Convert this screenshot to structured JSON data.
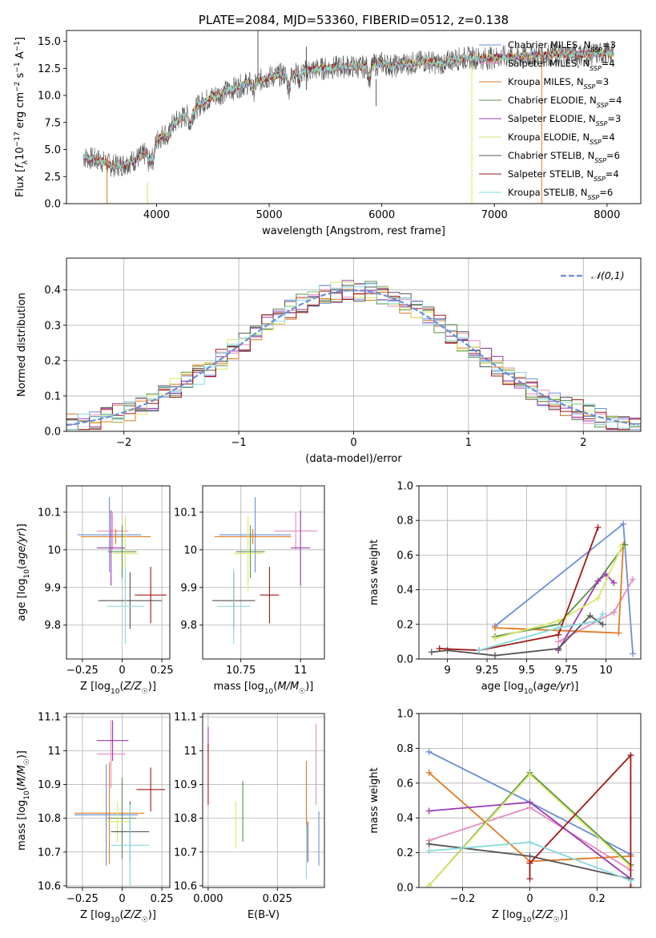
{
  "colors": {
    "chabrier_miles": "#6a8fd6",
    "salpeter_miles": "#e68bc0",
    "kroupa_miles": "#e07b24",
    "chabrier_elodie": "#5a8f4a",
    "salpeter_elodie": "#9a3cb0",
    "kroupa_elodie": "#d7e86a",
    "chabrier_stelib": "#555555",
    "salpeter_stelib": "#a01818",
    "kroupa_stelib": "#86d9de",
    "grid": "#b0b0b0"
  },
  "chart_data": [
    {
      "id": "spectrum",
      "type": "line",
      "title": "PLATE=2084, MJD=53360, FIBERID=0512, z=0.138",
      "xlabel": "wavelength [Angstrom, rest frame]",
      "ylabel": "Flux [f_λ 10^-17 erg cm^-2 s^-1 A^-1]",
      "xlim": [
        3200,
        8300
      ],
      "ylim": [
        0,
        16
      ],
      "xticks": [
        4000,
        5000,
        6000,
        7000,
        8000
      ],
      "yticks": [
        0.0,
        2.5,
        5.0,
        7.5,
        10.0,
        12.5,
        15.0
      ],
      "grid": false,
      "legend_position": "upper-right",
      "legend": [
        {
          "name": "Chabrier MILES, N_SSP=3",
          "color_key": "chabrier_miles"
        },
        {
          "name": "Salpeter MILES, N_SSP=4",
          "color_key": "salpeter_miles"
        },
        {
          "name": "Kroupa MILES, N_SSP=3",
          "color_key": "kroupa_miles"
        },
        {
          "name": "Chabrier ELODIE, N_SSP=4",
          "color_key": "chabrier_elodie"
        },
        {
          "name": "Salpeter ELODIE, N_SSP=3",
          "color_key": "salpeter_elodie"
        },
        {
          "name": "Kroupa ELODIE, N_SSP=4",
          "color_key": "kroupa_elodie"
        },
        {
          "name": "Chabrier STELIB, N_SSP=6",
          "color_key": "chabrier_stelib"
        },
        {
          "name": "Salpeter STELIB, N_SSP=4",
          "color_key": "salpeter_stelib"
        },
        {
          "name": "Kroupa STELIB, N_SSP=6",
          "color_key": "kroupa_stelib"
        }
      ],
      "continuum": [
        [
          3350,
          4.3
        ],
        [
          3500,
          4.0
        ],
        [
          3600,
          3.5
        ],
        [
          3700,
          3.6
        ],
        [
          3800,
          4.0
        ],
        [
          3900,
          4.6
        ],
        [
          4000,
          5.8
        ],
        [
          4100,
          6.8
        ],
        [
          4200,
          7.8
        ],
        [
          4300,
          8.3
        ],
        [
          4400,
          9.3
        ],
        [
          4500,
          9.9
        ],
        [
          4600,
          10.3
        ],
        [
          4700,
          10.7
        ],
        [
          4800,
          11.1
        ],
        [
          4900,
          11.3
        ],
        [
          5000,
          11.7
        ],
        [
          5100,
          11.9
        ],
        [
          5200,
          12.0
        ],
        [
          5300,
          12.2
        ],
        [
          5400,
          12.4
        ],
        [
          5500,
          12.5
        ],
        [
          5600,
          12.6
        ],
        [
          5700,
          12.7
        ],
        [
          5800,
          12.6
        ],
        [
          5900,
          12.7
        ],
        [
          6000,
          13.0
        ],
        [
          6100,
          12.7
        ],
        [
          6200,
          12.9
        ],
        [
          6300,
          13.0
        ],
        [
          6400,
          13.2
        ],
        [
          6500,
          12.9
        ],
        [
          6600,
          13.3
        ],
        [
          6700,
          13.4
        ],
        [
          6800,
          13.5
        ],
        [
          6900,
          13.4
        ],
        [
          7000,
          13.5
        ],
        [
          7200,
          13.6
        ],
        [
          7400,
          13.7
        ],
        [
          7600,
          13.8
        ],
        [
          7800,
          13.8
        ],
        [
          8000,
          13.9
        ],
        [
          8060,
          13.9
        ]
      ],
      "absorption_dips": [
        [
          3934,
          1.2
        ],
        [
          3969,
          1.3
        ],
        [
          4102,
          0.8
        ],
        [
          4300,
          1.0
        ],
        [
          4861,
          0.8
        ],
        [
          5175,
          1.3
        ],
        [
          5270,
          0.6
        ],
        [
          5890,
          1.0
        ],
        [
          6563,
          0.5
        ]
      ],
      "spikes": [
        {
          "x": 3560,
          "y0": 0.0,
          "y1": 4.5,
          "color_key": "kroupa_miles"
        },
        {
          "x": 3920,
          "y0": 0.0,
          "y1": 2.0,
          "color_key": "kroupa_elodie"
        },
        {
          "x": 4900,
          "y0": 12.0,
          "y1": 16.0,
          "color_key": "chabrier_stelib"
        },
        {
          "x": 5330,
          "y0": 10.5,
          "y1": 14.5,
          "color_key": "chabrier_stelib"
        },
        {
          "x": 5950,
          "y0": 9.0,
          "y1": 11.5,
          "color_key": "chabrier_stelib"
        },
        {
          "x": 6800,
          "y0": 0.0,
          "y1": 13.0,
          "color_key": "kroupa_elodie"
        },
        {
          "x": 7420,
          "y0": 0.0,
          "y1": 14.0,
          "color_key": "kroupa_miles"
        }
      ]
    },
    {
      "id": "residuals",
      "type": "histogram",
      "xlabel": "(data-model)/error",
      "ylabel": "Normed distribution",
      "xlim": [
        -2.5,
        2.5
      ],
      "ylim": [
        0,
        0.49
      ],
      "xticks": [
        -2,
        -1,
        0,
        1,
        2
      ],
      "yticks": [
        0.0,
        0.1,
        0.2,
        0.3,
        0.4
      ],
      "grid": true,
      "bin_width": 0.1,
      "legend_position": "upper-right",
      "gaussian": {
        "name": "𝒩(0,1)",
        "mean": 0,
        "sigma": 1,
        "color_key": "chabrier_miles"
      }
    },
    {
      "id": "age-vs-z",
      "type": "errorbar",
      "xlabel": "Z [log10(Z/Z☉)]",
      "ylabel": "age [log10(age/yr)]",
      "xlim": [
        -0.35,
        0.3
      ],
      "ylim": [
        9.71,
        10.17
      ],
      "xticks": [
        -0.25,
        0.0,
        0.25
      ],
      "yticks": [
        9.8,
        9.9,
        10.0,
        10.1
      ],
      "grid": true,
      "points": [
        {
          "x": -0.08,
          "xerr": 0.2,
          "y": 10.04,
          "yerr": 0.1,
          "color_key": "chabrier_miles"
        },
        {
          "x": -0.06,
          "xerr": 0.1,
          "y": 10.05,
          "yerr": 0.05,
          "color_key": "salpeter_miles"
        },
        {
          "x": -0.04,
          "xerr": 0.22,
          "y": 10.035,
          "yerr": 0.02,
          "color_key": "kroupa_miles"
        },
        {
          "x": 0.0,
          "xerr": 0.09,
          "y": 9.995,
          "yerr": 0.07,
          "color_key": "chabrier_elodie"
        },
        {
          "x": -0.07,
          "xerr": 0.09,
          "y": 10.005,
          "yerr": 0.1,
          "color_key": "salpeter_elodie"
        },
        {
          "x": 0.02,
          "xerr": 0.08,
          "y": 9.99,
          "yerr": 0.1,
          "color_key": "kroupa_elodie"
        },
        {
          "x": 0.05,
          "xerr": 0.2,
          "y": 9.865,
          "yerr": 0.075,
          "color_key": "chabrier_stelib"
        },
        {
          "x": 0.18,
          "xerr": 0.1,
          "y": 9.88,
          "yerr": 0.075,
          "color_key": "salpeter_stelib"
        },
        {
          "x": 0.02,
          "xerr": 0.12,
          "y": 9.85,
          "yerr": 0.1,
          "color_key": "kroupa_stelib"
        }
      ]
    },
    {
      "id": "age-vs-mass",
      "type": "errorbar",
      "xlabel": "mass [log10(M/M☉)]",
      "ylabel": "",
      "xlim": [
        10.59,
        11.1
      ],
      "ylim": [
        9.71,
        10.17
      ],
      "xticks": [
        10.75,
        11.0
      ],
      "yticks": [
        9.8,
        9.9,
        10.0,
        10.1
      ],
      "grid": true,
      "points": [
        {
          "x": 10.81,
          "xerr": 0.15,
          "y": 10.04,
          "yerr": 0.1,
          "color_key": "chabrier_miles"
        },
        {
          "x": 10.98,
          "xerr": 0.09,
          "y": 10.05,
          "yerr": 0.05,
          "color_key": "salpeter_miles"
        },
        {
          "x": 10.8,
          "xerr": 0.16,
          "y": 10.035,
          "yerr": 0.02,
          "color_key": "kroupa_miles"
        },
        {
          "x": 10.79,
          "xerr": 0.06,
          "y": 9.995,
          "yerr": 0.07,
          "color_key": "chabrier_elodie"
        },
        {
          "x": 11.0,
          "xerr": 0.04,
          "y": 10.005,
          "yerr": 0.1,
          "color_key": "salpeter_elodie"
        },
        {
          "x": 10.78,
          "xerr": 0.06,
          "y": 9.99,
          "yerr": 0.1,
          "color_key": "kroupa_elodie"
        },
        {
          "x": 10.72,
          "xerr": 0.09,
          "y": 9.865,
          "yerr": 0.075,
          "color_key": "chabrier_stelib"
        },
        {
          "x": 10.87,
          "xerr": 0.04,
          "y": 9.88,
          "yerr": 0.075,
          "color_key": "salpeter_stelib"
        },
        {
          "x": 10.72,
          "xerr": 0.07,
          "y": 9.85,
          "yerr": 0.1,
          "color_key": "kroupa_stelib"
        }
      ]
    },
    {
      "id": "mass-weight-vs-age",
      "type": "line",
      "xlabel": "age [log10(age/yr)]",
      "ylabel": "mass weight",
      "xlim": [
        8.82,
        10.22
      ],
      "ylim": [
        0,
        1.0
      ],
      "xticks": [
        9.0,
        9.25,
        9.5,
        9.75,
        10.0
      ],
      "yticks": [
        0.0,
        0.2,
        0.4,
        0.6,
        0.8,
        1.0
      ],
      "grid": true,
      "series": [
        {
          "color_key": "chabrier_miles",
          "x": [
            9.3,
            10.11,
            10.17
          ],
          "y": [
            0.19,
            0.78,
            0.03
          ]
        },
        {
          "color_key": "salpeter_miles",
          "x": [
            9.7,
            10.05,
            10.17
          ],
          "y": [
            0.1,
            0.27,
            0.46
          ]
        },
        {
          "color_key": "kroupa_miles",
          "x": [
            9.3,
            10.08,
            10.11
          ],
          "y": [
            0.18,
            0.15,
            0.66
          ]
        },
        {
          "color_key": "chabrier_elodie",
          "x": [
            9.3,
            9.7,
            9.95,
            10.12
          ],
          "y": [
            0.13,
            0.2,
            0.45,
            0.66
          ]
        },
        {
          "color_key": "salpeter_elodie",
          "x": [
            9.7,
            9.95,
            10.0,
            10.05
          ],
          "y": [
            0.05,
            0.45,
            0.49,
            0.44
          ]
        },
        {
          "color_key": "kroupa_elodie",
          "x": [
            9.3,
            9.7,
            9.95,
            10.1
          ],
          "y": [
            0.12,
            0.22,
            0.35,
            0.65
          ]
        },
        {
          "color_key": "chabrier_stelib",
          "x": [
            8.9,
            9.0,
            9.3,
            9.7,
            9.9,
            9.98
          ],
          "y": [
            0.04,
            0.05,
            0.02,
            0.06,
            0.25,
            0.2
          ]
        },
        {
          "color_key": "salpeter_stelib",
          "x": [
            8.95,
            9.2,
            9.7,
            9.95
          ],
          "y": [
            0.06,
            0.05,
            0.14,
            0.76
          ]
        },
        {
          "color_key": "kroupa_stelib",
          "x": [
            9.2,
            9.7,
            9.95,
            9.98
          ],
          "y": [
            0.05,
            0.18,
            0.22,
            0.26
          ]
        }
      ]
    },
    {
      "id": "mass-vs-z",
      "type": "errorbar",
      "xlabel": "Z [log10(Z/Z☉)]",
      "ylabel": "mass [log10(M/M☉)]",
      "xlim": [
        -0.35,
        0.3
      ],
      "ylim": [
        10.595,
        11.11
      ],
      "xticks": [
        -0.25,
        0.0,
        0.25
      ],
      "yticks": [
        10.6,
        10.7,
        10.8,
        10.9,
        11.0,
        11.1
      ],
      "grid": true,
      "points": [
        {
          "x": -0.1,
          "xerr": 0.2,
          "y": 10.81,
          "yerr": 0.15,
          "color_key": "chabrier_miles"
        },
        {
          "x": -0.07,
          "xerr": 0.09,
          "y": 10.99,
          "yerr": 0.1,
          "color_key": "salpeter_miles"
        },
        {
          "x": -0.08,
          "xerr": 0.22,
          "y": 10.815,
          "yerr": 0.15,
          "color_key": "kroupa_miles"
        },
        {
          "x": 0.0,
          "xerr": 0.09,
          "y": 10.8,
          "yerr": 0.12,
          "color_key": "chabrier_elodie"
        },
        {
          "x": -0.06,
          "xerr": 0.1,
          "y": 11.03,
          "yerr": 0.06,
          "color_key": "salpeter_elodie"
        },
        {
          "x": -0.03,
          "xerr": 0.08,
          "y": 10.79,
          "yerr": 0.06,
          "color_key": "kroupa_elodie"
        },
        {
          "x": 0.05,
          "xerr": 0.12,
          "y": 10.76,
          "yerr": 0.09,
          "color_key": "chabrier_stelib"
        },
        {
          "x": 0.18,
          "xerr": 0.09,
          "y": 10.885,
          "yerr": 0.065,
          "color_key": "salpeter_stelib"
        },
        {
          "x": 0.05,
          "xerr": 0.12,
          "y": 10.72,
          "yerr": 0.12,
          "color_key": "kroupa_stelib"
        }
      ]
    },
    {
      "id": "mass-vs-ebv",
      "type": "errorbar",
      "xlabel": "E(B-V)",
      "ylabel": "",
      "xlim": [
        -0.002,
        0.042
      ],
      "ylim": [
        10.595,
        11.11
      ],
      "xticks": [
        0.0,
        0.025
      ],
      "xticklabels": [
        "0.000",
        "0.025"
      ],
      "yticks": [
        10.6,
        10.7,
        10.8,
        10.9,
        11.0,
        11.1
      ],
      "grid": true,
      "points": [
        {
          "x": 0.04,
          "xerr": 0,
          "y": 10.74,
          "yerr": 0.08,
          "color_key": "chabrier_miles"
        },
        {
          "x": 0.039,
          "xerr": 0,
          "y": 10.96,
          "yerr": 0.12,
          "color_key": "salpeter_miles"
        },
        {
          "x": 0.0355,
          "xerr": 0,
          "y": 10.87,
          "yerr": 0.1,
          "color_key": "kroupa_miles"
        },
        {
          "x": 0.0125,
          "xerr": 0,
          "y": 10.82,
          "yerr": 0.09,
          "color_key": "chabrier_elodie"
        },
        {
          "x": 0.0,
          "xerr": 0,
          "y": 11.03,
          "yerr": 0.04,
          "color_key": "salpeter_elodie"
        },
        {
          "x": 0.01,
          "xerr": 0,
          "y": 10.78,
          "yerr": 0.07,
          "color_key": "kroupa_elodie"
        },
        {
          "x": 0.036,
          "xerr": 0,
          "y": 10.73,
          "yerr": 0.06,
          "color_key": "chabrier_stelib"
        },
        {
          "x": 0.0,
          "xerr": 0,
          "y": 10.93,
          "yerr": 0.09,
          "color_key": "salpeter_stelib"
        },
        {
          "x": 0.0355,
          "xerr": 0,
          "y": 10.7,
          "yerr": 0.08,
          "color_key": "kroupa_stelib"
        }
      ]
    },
    {
      "id": "mass-weight-vs-z",
      "type": "line",
      "xlabel": "Z [log10(Z/Z☉)]",
      "ylabel": "mass weight",
      "xlim": [
        -0.33,
        0.33
      ],
      "ylim": [
        0,
        1.0
      ],
      "xticks": [
        -0.2,
        0.0,
        0.2
      ],
      "yticks": [
        0.0,
        0.2,
        0.4,
        0.6,
        0.8,
        1.0
      ],
      "grid": true,
      "series": [
        {
          "color_key": "chabrier_miles",
          "x": [
            -0.3,
            0.0,
            0.3
          ],
          "y": [
            0.78,
            0.49,
            0.19
          ]
        },
        {
          "color_key": "salpeter_miles",
          "x": [
            -0.3,
            0.0,
            0.3
          ],
          "y": [
            0.27,
            0.46,
            0.1
          ]
        },
        {
          "color_key": "kroupa_miles",
          "x": [
            -0.3,
            0.0,
            0.3
          ],
          "y": [
            0.66,
            0.15,
            0.18
          ]
        },
        {
          "color_key": "chabrier_elodie",
          "x": [
            -0.3,
            0.0,
            0.3
          ],
          "y": [
            0.01,
            0.66,
            0.13
          ]
        },
        {
          "color_key": "salpeter_elodie",
          "x": [
            -0.3,
            0.0,
            0.3
          ],
          "y": [
            0.44,
            0.49,
            0.05
          ]
        },
        {
          "color_key": "kroupa_elodie",
          "x": [
            -0.3,
            0.0,
            0.3
          ],
          "y": [
            0.01,
            0.65,
            0.12
          ]
        },
        {
          "color_key": "chabrier_stelib",
          "x": [
            -0.3,
            0.0,
            0.3
          ],
          "y": [
            0.25,
            0.18,
            0.05
          ]
        },
        {
          "color_key": "salpeter_stelib",
          "x": [
            0.0,
            0.0,
            0.3,
            0.3
          ],
          "y": [
            0.05,
            0.14,
            0.76,
            0.0
          ]
        },
        {
          "color_key": "kroupa_stelib",
          "x": [
            -0.3,
            0.0,
            0.3
          ],
          "y": [
            0.21,
            0.26,
            0.04
          ]
        }
      ]
    }
  ]
}
